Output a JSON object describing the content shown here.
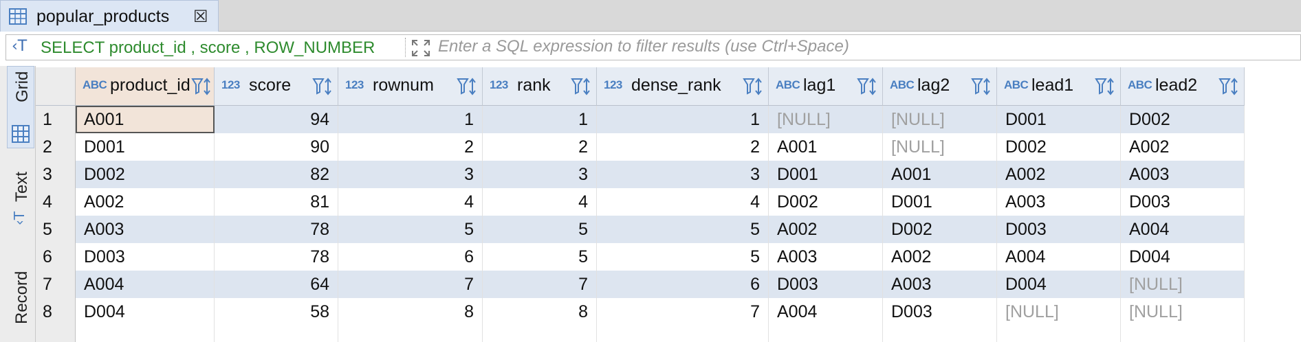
{
  "tab": {
    "title": "popular_products",
    "close_glyph": "☒"
  },
  "filter": {
    "query": "SELECT product_id , score , ROW_NUMBER",
    "placeholder": "Enter a SQL expression to filter results (use Ctrl+Space)",
    "sql_icon_text": "‹T"
  },
  "side_tabs": {
    "grid": "Grid",
    "text": "Text",
    "record": "Record"
  },
  "grid": {
    "columns": [
      {
        "name": "product_id",
        "type_label": "ABC"
      },
      {
        "name": "score",
        "type_label": "123"
      },
      {
        "name": "rownum",
        "type_label": "123"
      },
      {
        "name": "rank",
        "type_label": "123"
      },
      {
        "name": "dense_rank",
        "type_label": "123"
      },
      {
        "name": "lag1",
        "type_label": "ABC"
      },
      {
        "name": "lag2",
        "type_label": "ABC"
      },
      {
        "name": "lead1",
        "type_label": "ABC"
      },
      {
        "name": "lead2",
        "type_label": "ABC"
      }
    ],
    "rows": [
      {
        "num": "1",
        "cells": [
          "A001",
          "94",
          "1",
          "1",
          "1",
          "[NULL]",
          "[NULL]",
          "D001",
          "D002"
        ]
      },
      {
        "num": "2",
        "cells": [
          "D001",
          "90",
          "2",
          "2",
          "2",
          "A001",
          "[NULL]",
          "D002",
          "A002"
        ]
      },
      {
        "num": "3",
        "cells": [
          "D002",
          "82",
          "3",
          "3",
          "3",
          "D001",
          "A001",
          "A002",
          "A003"
        ]
      },
      {
        "num": "4",
        "cells": [
          "A002",
          "81",
          "4",
          "4",
          "4",
          "D002",
          "D001",
          "A003",
          "D003"
        ]
      },
      {
        "num": "5",
        "cells": [
          "A003",
          "78",
          "5",
          "5",
          "5",
          "A002",
          "D002",
          "D003",
          "A004"
        ]
      },
      {
        "num": "6",
        "cells": [
          "D003",
          "78",
          "6",
          "5",
          "5",
          "A003",
          "A002",
          "A004",
          "D004"
        ]
      },
      {
        "num": "7",
        "cells": [
          "A004",
          "64",
          "7",
          "7",
          "6",
          "D003",
          "A003",
          "D004",
          "[NULL]"
        ]
      },
      {
        "num": "8",
        "cells": [
          "D004",
          "58",
          "8",
          "8",
          "7",
          "A004",
          "D003",
          "[NULL]",
          "[NULL]"
        ]
      }
    ]
  },
  "colors": {
    "accent": "#4a7fc1",
    "query_green": "#2e8b2e",
    "null_gray": "#a0a0a0",
    "row_alt": "#dde5f0",
    "selected": "#f2e4d9"
  }
}
